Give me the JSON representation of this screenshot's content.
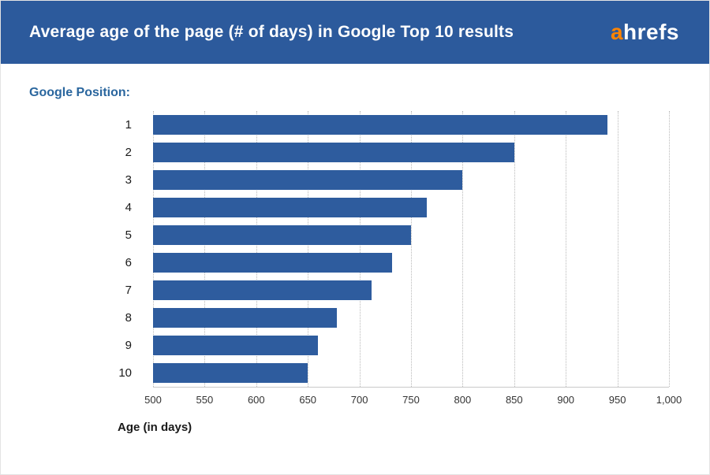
{
  "header": {
    "title": "Average age of the page (# of days) in Google Top 10 results",
    "logo_a": "a",
    "logo_rest": "hrefs"
  },
  "colors": {
    "header_background": "#2c5a9c",
    "bar_blue": "#2e5c9e",
    "logo_orange": "#ff8402",
    "group_label_blue": "#2a669e",
    "gridline_gray": "#b9b9b9"
  },
  "chart_data": {
    "type": "bar",
    "orientation": "horizontal",
    "title": "Average age of the page (# of days) in Google Top 10 results",
    "group_label": "Google Position:",
    "categories": [
      "1",
      "2",
      "3",
      "4",
      "5",
      "6",
      "7",
      "8",
      "9",
      "10"
    ],
    "values": [
      940,
      850,
      800,
      765,
      750,
      732,
      712,
      678,
      660,
      650
    ],
    "xlabel": "Age (in days)",
    "ylabel": "Google Position",
    "xlim": [
      500,
      1000
    ],
    "xticks": [
      500,
      550,
      600,
      650,
      700,
      750,
      800,
      850,
      900,
      950,
      1000
    ],
    "xtick_labels": [
      "500",
      "550",
      "600",
      "650",
      "700",
      "750",
      "800",
      "850",
      "900",
      "950",
      "1,000"
    ],
    "bar_color": "#2e5c9e",
    "grid": "dotted-vertical",
    "legend": "none"
  }
}
